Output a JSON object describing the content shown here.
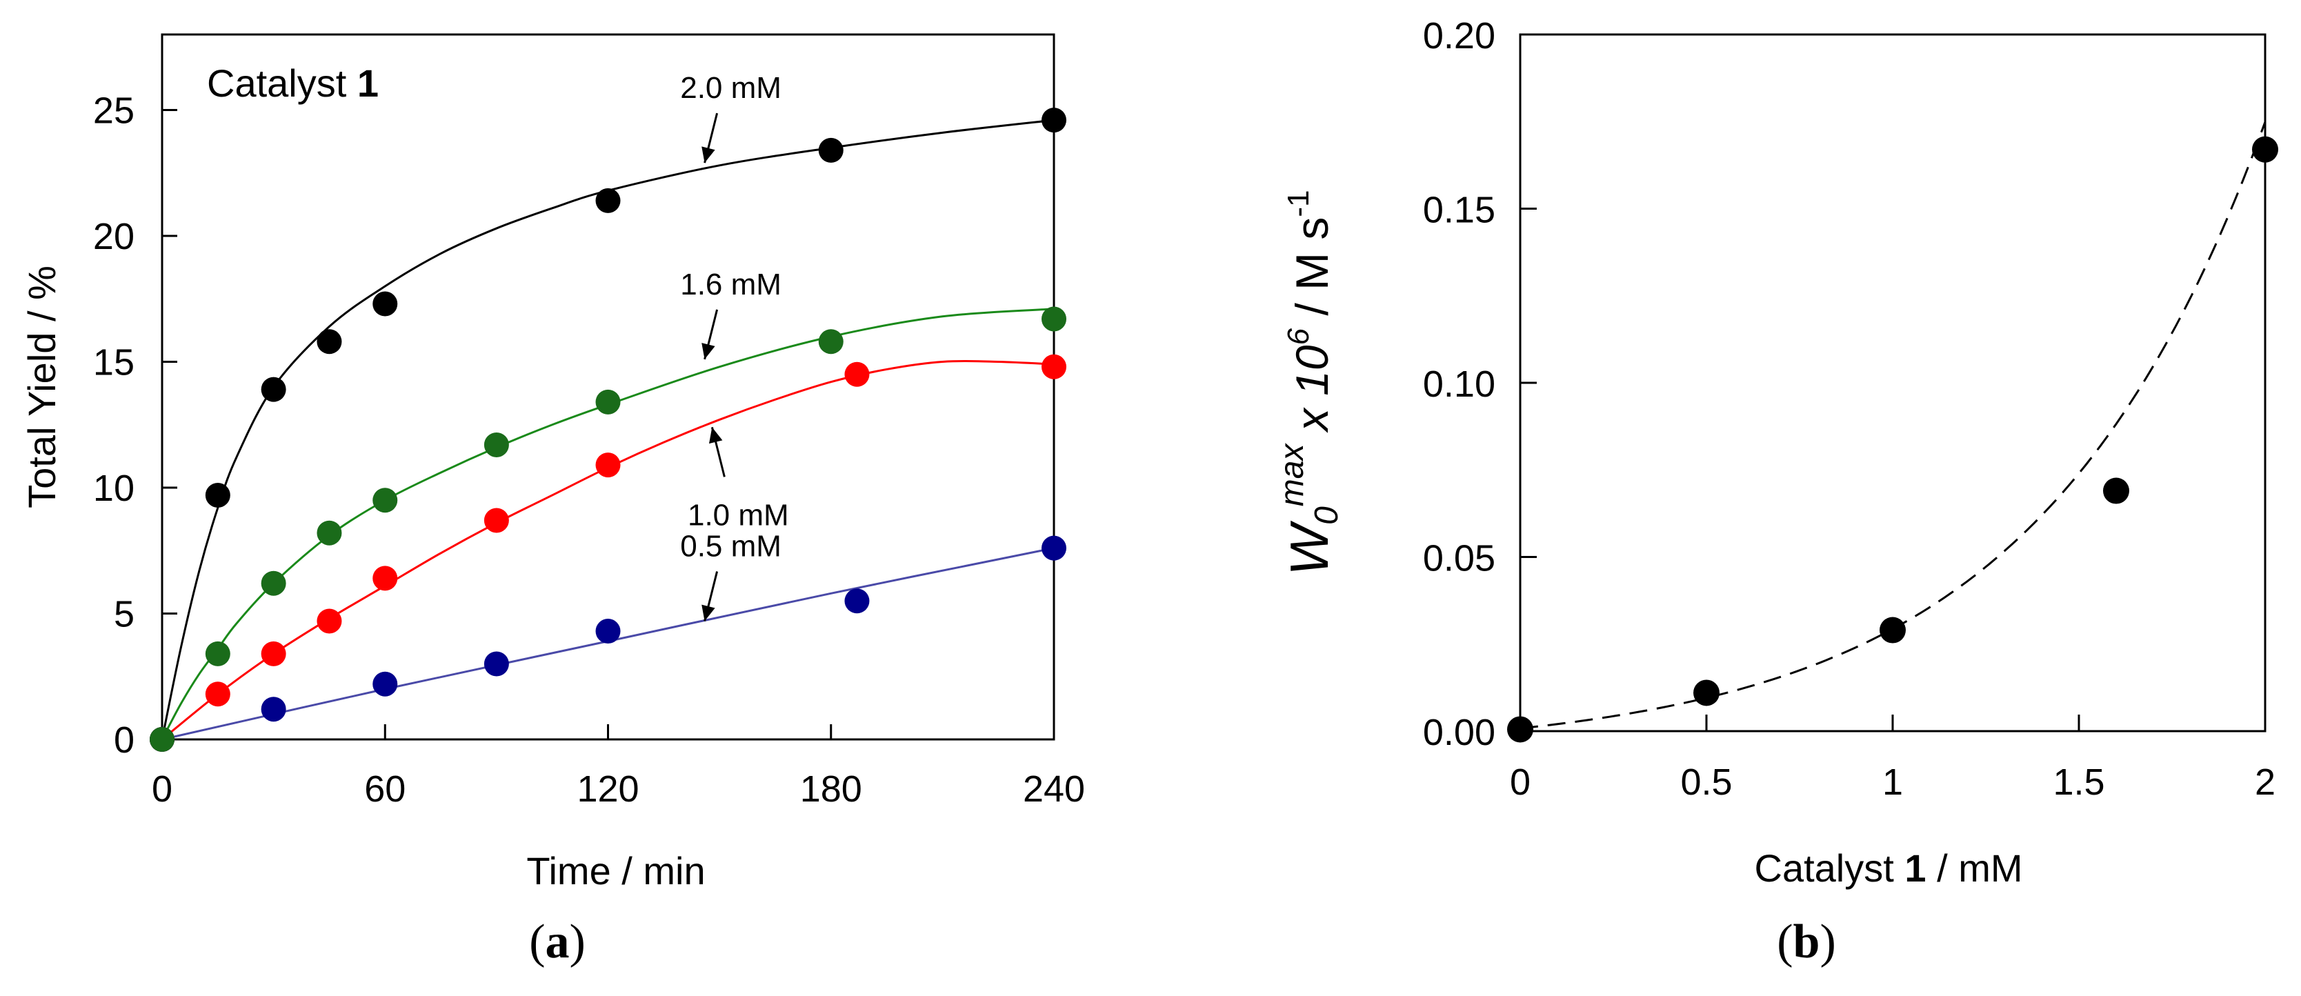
{
  "chart_data": [
    {
      "type": "scatter",
      "panel_label": "a",
      "xlabel": "Time / min",
      "ylabel": "Total Yield / %",
      "xlim": [
        0,
        240
      ],
      "ylim": [
        0,
        28
      ],
      "x_ticks": [
        "0",
        "60",
        "120",
        "180",
        "240"
      ],
      "y_ticks": [
        "0",
        "5",
        "10",
        "15",
        "20",
        "25"
      ],
      "inset_title": {
        "text": "Catalyst ",
        "bold": "1"
      },
      "series": [
        {
          "name": "2.0 mM",
          "color": "#000000",
          "line_color": "#000000",
          "x": [
            0,
            15,
            30,
            45,
            60,
            120,
            180,
            240
          ],
          "y": [
            0,
            9.7,
            13.9,
            15.8,
            17.3,
            21.4,
            23.4,
            24.6
          ],
          "fit": [
            [
              0,
              0
            ],
            [
              5,
              3.6
            ],
            [
              10,
              6.7
            ],
            [
              15,
              9.2
            ],
            [
              20,
              11.2
            ],
            [
              30,
              14.0
            ],
            [
              45,
              16.4
            ],
            [
              60,
              18.0
            ],
            [
              75,
              19.3
            ],
            [
              90,
              20.3
            ],
            [
              105,
              21.1
            ],
            [
              120,
              21.8
            ],
            [
              150,
              22.8
            ],
            [
              180,
              23.5
            ],
            [
              210,
              24.1
            ],
            [
              240,
              24.6
            ]
          ]
        },
        {
          "name": "1.6 mM",
          "color": "#1a6b1a",
          "line_color": "#1a8a1a",
          "x": [
            0,
            15,
            30,
            45,
            60,
            90,
            120,
            180,
            240
          ],
          "y": [
            0,
            3.4,
            6.2,
            8.2,
            9.5,
            11.7,
            13.4,
            15.8,
            16.7
          ],
          "fit": [
            [
              0,
              0
            ],
            [
              5,
              1.4
            ],
            [
              10,
              2.6
            ],
            [
              15,
              3.6
            ],
            [
              20,
              4.6
            ],
            [
              30,
              6.2
            ],
            [
              45,
              8.1
            ],
            [
              60,
              9.5
            ],
            [
              75,
              10.6
            ],
            [
              90,
              11.6
            ],
            [
              105,
              12.5
            ],
            [
              120,
              13.3
            ],
            [
              150,
              14.8
            ],
            [
              180,
              16.0
            ],
            [
              210,
              16.8
            ],
            [
              240,
              17.1
            ]
          ]
        },
        {
          "name": "1.0 mM",
          "color": "#ff0000",
          "line_color": "#ff0000",
          "x": [
            0,
            15,
            30,
            45,
            60,
            90,
            120,
            187,
            240
          ],
          "y": [
            0,
            1.8,
            3.4,
            4.7,
            6.4,
            8.7,
            10.9,
            14.5,
            14.8
          ],
          "fit": [
            [
              0,
              0
            ],
            [
              15,
              1.8
            ],
            [
              30,
              3.4
            ],
            [
              45,
              4.8
            ],
            [
              60,
              6.1
            ],
            [
              75,
              7.4
            ],
            [
              90,
              8.6
            ],
            [
              105,
              9.7
            ],
            [
              120,
              10.8
            ],
            [
              135,
              11.8
            ],
            [
              150,
              12.7
            ],
            [
              165,
              13.5
            ],
            [
              180,
              14.2
            ],
            [
              195,
              14.7
            ],
            [
              210,
              15.0
            ],
            [
              225,
              15.0
            ],
            [
              240,
              14.9
            ]
          ]
        },
        {
          "name": "0.5 mM",
          "color": "#00008b",
          "line_color": "#4a4aa8",
          "x": [
            0,
            30,
            60,
            90,
            120,
            187,
            240
          ],
          "y": [
            0,
            1.2,
            2.2,
            3.0,
            4.3,
            5.5,
            7.6
          ],
          "fit": [
            [
              0,
              0
            ],
            [
              60,
              2.0
            ],
            [
              120,
              3.9
            ],
            [
              180,
              5.8
            ],
            [
              240,
              7.6
            ]
          ]
        }
      ],
      "annotations": [
        {
          "text": "2.0 mM",
          "target": [
            146,
            22.9
          ]
        },
        {
          "text": "1.6 mM",
          "target": [
            146,
            15.1
          ]
        },
        {
          "text": "1.0 mM",
          "target": [
            148,
            12.4
          ]
        },
        {
          "text": "0.5 mM",
          "target": [
            146,
            4.7
          ]
        }
      ]
    },
    {
      "type": "scatter",
      "panel_label": "b",
      "xlabel": {
        "pre": "Catalyst ",
        "bold": "1",
        "post": " / mM"
      },
      "ylabel": {
        "main": "W",
        "sub": "0",
        "sup": "max",
        "mid": " x  10",
        "sup2": "6",
        "post": " / M s",
        "sup3": "-1"
      },
      "xlim": [
        0,
        2
      ],
      "ylim": [
        0,
        0.2
      ],
      "x_ticks": [
        "0",
        "0.5",
        "1",
        "1.5",
        "2"
      ],
      "y_ticks": [
        "0.00",
        "0.05",
        "0.10",
        "0.15",
        "0.20"
      ],
      "series": [
        {
          "name": "data",
          "color": "#000000",
          "x": [
            0,
            0.5,
            1.0,
            1.6,
            2.0
          ],
          "y": [
            0.0005,
            0.011,
            0.029,
            0.069,
            0.167
          ]
        }
      ],
      "fit": {
        "style": "dashed",
        "model": "a*(exp(b*x)-1)",
        "a": 0.00695,
        "b": 1.63
      }
    }
  ]
}
